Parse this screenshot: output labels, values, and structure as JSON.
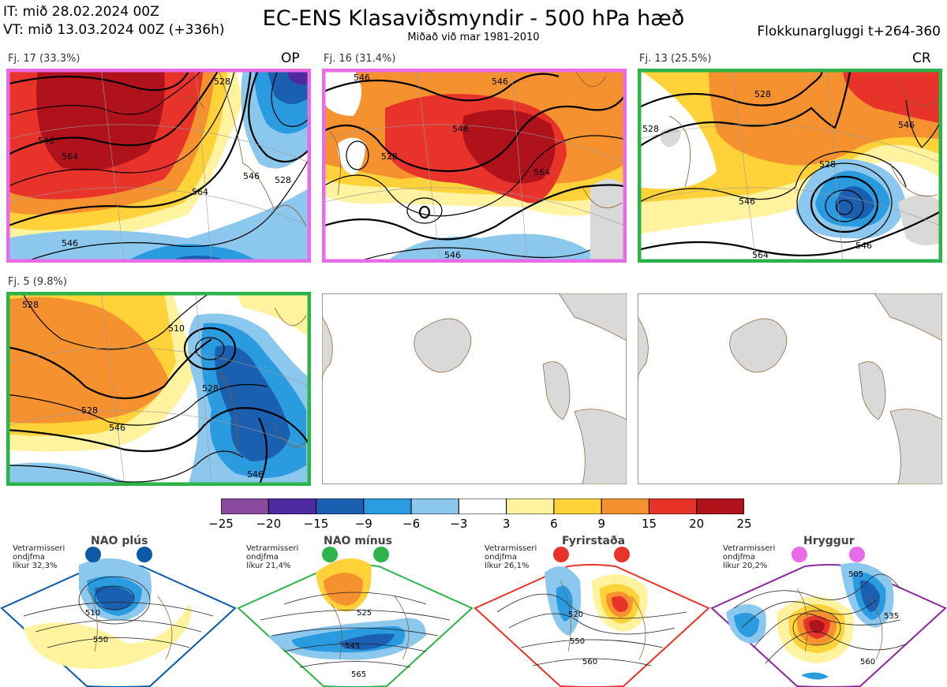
{
  "header": {
    "it_line": "IT: mið 28.02.2024 00Z",
    "vt_line": "VT: mið 13.03.2024 00Z  (+336h)",
    "title": "EC-ENS Klasaviðsmyndir - 500 hPa hæð",
    "subtitle": "Miðað við mar 1981-2010",
    "window": "Flokkunargluggi t+264-360"
  },
  "clusters": [
    {
      "label": "Fj. 17 (33.3%)",
      "tag": "OP",
      "border_color": "#e86be8",
      "contours": [
        "528",
        "546",
        "564",
        "564",
        "546",
        "546",
        "528"
      ]
    },
    {
      "label": "Fj. 16 (31.4%)",
      "tag": "",
      "border_color": "#e86be8",
      "contours": [
        "546",
        "546",
        "528",
        "546",
        "564",
        "546"
      ]
    },
    {
      "label": "Fj. 13 (25.5%)",
      "tag": "CR",
      "border_color": "#2db34a",
      "contours": [
        "528",
        "528",
        "546",
        "528",
        "564",
        "546",
        "546"
      ]
    },
    {
      "label": "Fj. 5 (9.8%)",
      "tag": "",
      "border_color": "#2db34a",
      "contours": [
        "528",
        "510",
        "528",
        "528",
        "546",
        "546"
      ]
    }
  ],
  "colorbar": {
    "ticks": [
      "−25",
      "−20",
      "−15",
      "−9",
      "−6",
      "−3",
      "3",
      "6",
      "9",
      "15",
      "20",
      "25"
    ],
    "colors": [
      "#8a4a9e",
      "#4e2aa0",
      "#1a5fb0",
      "#2b9be0",
      "#8cc8ee",
      "#ffffff",
      "#fff3a0",
      "#ffd23a",
      "#f5912e",
      "#e8332a",
      "#b0121b"
    ]
  },
  "patterns": [
    {
      "name": "NAO plús",
      "stat_lines": [
        "Vetrarmisseri",
        "ondjfma",
        "líkur 32,3%"
      ],
      "dot_color": "#0b5aa8",
      "border_color": "#0b5aa8",
      "contours": [
        "510",
        "550"
      ]
    },
    {
      "name": "NAO mínus",
      "stat_lines": [
        "Vetrarmisseri",
        "ondjfma",
        "líkur 21,4%"
      ],
      "dot_color": "#2db34a",
      "border_color": "#2db34a",
      "contours": [
        "525",
        "545",
        "565"
      ]
    },
    {
      "name": "Fyrirstaða",
      "stat_lines": [
        "Vetrarmisseri",
        "ondjfma",
        "líkur 26,1%"
      ],
      "dot_color": "#e8332a",
      "border_color": "#e8332a",
      "contours": [
        "520",
        "550",
        "560"
      ]
    },
    {
      "name": "Hryggur",
      "stat_lines": [
        "Vetrarmisseri",
        "ondjfma",
        "líkur 20,2%"
      ],
      "dot_color": "#e86be8",
      "border_color": "#8a2a9e",
      "contours": [
        "505",
        "535",
        "560"
      ]
    }
  ]
}
